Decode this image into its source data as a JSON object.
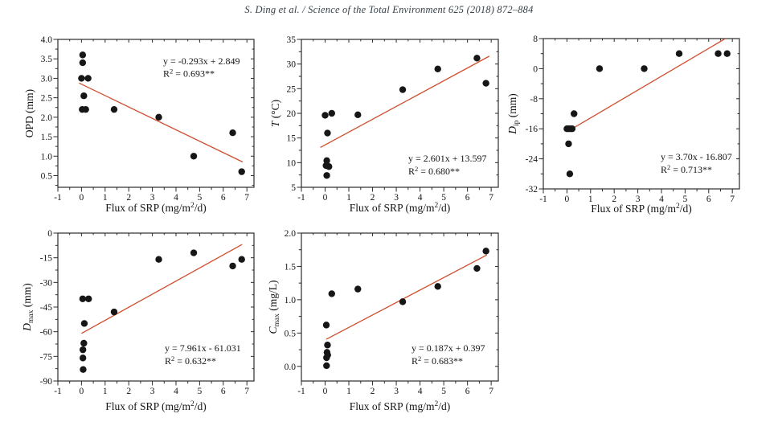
{
  "header": {
    "citation": "S. Ding et al. / Science of the Total Environment 625 (2018) 872–884"
  },
  "colors": {
    "background": "#ffffff",
    "axis": "#2b2b2b",
    "point": "#161616",
    "fit_line": "#cf4e2e",
    "text": "#141414",
    "header_text": "#37424a"
  },
  "xlabel": {
    "prefix": "Flux of SRP (mg/m",
    "sup": "2",
    "suffix": "/d)"
  },
  "chart_data": [
    {
      "id": "opd",
      "type": "scatter",
      "ylabel": {
        "prefix": "OPD",
        "italic": false,
        "sub": "",
        "unit": " (mm)"
      },
      "xlim": [
        -1,
        7.3
      ],
      "ylim": [
        0.2,
        4.0
      ],
      "xticks": [
        -1,
        0,
        1,
        2,
        3,
        4,
        5,
        6,
        7
      ],
      "yticks": [
        0.5,
        1.0,
        1.5,
        2.0,
        2.5,
        3.0,
        3.5,
        4.0
      ],
      "ytick_labels": [
        "0.5",
        "1.0",
        "1.5",
        "2.0",
        "2.5",
        "3.0",
        "3.5",
        "4.0"
      ],
      "x_minor_step": 0.5,
      "y_minor_step": 0.25,
      "grid": false,
      "points": [
        [
          0.05,
          3.6
        ],
        [
          0.05,
          3.4
        ],
        [
          0.0,
          3.0
        ],
        [
          0.28,
          3.0
        ],
        [
          0.1,
          2.55
        ],
        [
          0.03,
          2.2
        ],
        [
          0.18,
          2.2
        ],
        [
          1.38,
          2.2
        ],
        [
          3.27,
          2.0
        ],
        [
          4.75,
          1.0
        ],
        [
          6.4,
          1.6
        ],
        [
          6.78,
          0.6
        ]
      ],
      "fit": {
        "slope": -0.293,
        "intercept": 2.849,
        "x_start": -0.1,
        "x_end": 6.82
      },
      "fit_label": {
        "line1": "y = -0.293x + 2.849",
        "r2_prefix": "R",
        "r2_sup": "2",
        "r2_rest": " = 0.693**"
      }
    },
    {
      "id": "t",
      "type": "scatter",
      "ylabel": {
        "prefix": "T",
        "italic": true,
        "sub": "",
        "unit": " (°C)"
      },
      "xlim": [
        -1,
        7.3
      ],
      "ylim": [
        5,
        35
      ],
      "xticks": [
        -1,
        0,
        1,
        2,
        3,
        4,
        5,
        6,
        7
      ],
      "yticks": [
        5,
        10,
        15,
        20,
        25,
        30,
        35
      ],
      "ytick_labels": [
        "5",
        "10",
        "15",
        "20",
        "25",
        "30",
        "35"
      ],
      "x_minor_step": 0.5,
      "y_minor_step": 2.5,
      "grid": false,
      "points": [
        [
          0.0,
          19.6
        ],
        [
          0.28,
          20.0
        ],
        [
          0.1,
          16.0
        ],
        [
          1.38,
          19.7
        ],
        [
          3.27,
          24.8
        ],
        [
          4.75,
          29.0
        ],
        [
          6.4,
          31.2
        ],
        [
          6.78,
          26.1
        ],
        [
          0.07,
          10.4
        ],
        [
          0.04,
          9.4
        ],
        [
          0.16,
          9.2
        ],
        [
          0.07,
          7.4
        ]
      ],
      "fit": {
        "slope": 2.601,
        "intercept": 13.597,
        "x_start": -0.2,
        "x_end": 6.92
      },
      "fit_label": {
        "line1": "y = 2.601x + 13.597",
        "r2_prefix": "R",
        "r2_sup": "2",
        "r2_rest": " = 0.680**"
      }
    },
    {
      "id": "dip",
      "type": "scatter",
      "ylabel": {
        "prefix": "D",
        "italic": true,
        "sub": "ip",
        "unit": " (mm)"
      },
      "xlim": [
        -1,
        7.3
      ],
      "ylim": [
        -32,
        8
      ],
      "xticks": [
        -1,
        0,
        1,
        2,
        3,
        4,
        5,
        6,
        7
      ],
      "yticks": [
        -32,
        -24,
        -16,
        -8,
        0,
        8
      ],
      "ytick_labels": [
        "-32",
        "-24",
        "-16",
        "-8",
        "0",
        "8"
      ],
      "x_minor_step": 0.5,
      "y_minor_step": 4,
      "grid": false,
      "points": [
        [
          1.38,
          0
        ],
        [
          3.27,
          0
        ],
        [
          4.75,
          4
        ],
        [
          6.4,
          4
        ],
        [
          6.78,
          4
        ],
        [
          0.3,
          -12
        ],
        [
          0.0,
          -16
        ],
        [
          0.07,
          -16
        ],
        [
          0.15,
          -16
        ],
        [
          0.22,
          -16
        ],
        [
          0.07,
          -20
        ],
        [
          0.12,
          -28
        ]
      ],
      "fit": {
        "slope": 3.7,
        "intercept": -16.807,
        "x_start": 0.08,
        "x_end": 6.7
      },
      "fit_label": {
        "line1": "y = 3.70x - 16.807",
        "r2_prefix": "R",
        "r2_sup": "2",
        "r2_rest": " = 0.713**"
      }
    },
    {
      "id": "dmax",
      "type": "scatter",
      "ylabel": {
        "prefix": "D",
        "italic": true,
        "sub": "max",
        "unit": " (mm)"
      },
      "xlim": [
        -1,
        7.3
      ],
      "ylim": [
        -90,
        0
      ],
      "xticks": [
        -1,
        0,
        1,
        2,
        3,
        4,
        5,
        6,
        7
      ],
      "yticks": [
        -90,
        -75,
        -60,
        -45,
        -30,
        -15,
        0
      ],
      "ytick_labels": [
        "-90",
        "-75",
        "-60",
        "-45",
        "-30",
        "-15",
        "0"
      ],
      "x_minor_step": 0.5,
      "y_minor_step": 7.5,
      "grid": false,
      "points": [
        [
          0.05,
          -40
        ],
        [
          0.3,
          -40
        ],
        [
          1.38,
          -48
        ],
        [
          3.27,
          -16
        ],
        [
          4.75,
          -12
        ],
        [
          6.4,
          -20
        ],
        [
          6.78,
          -16
        ],
        [
          0.12,
          -55
        ],
        [
          0.1,
          -67
        ],
        [
          0.06,
          -71
        ],
        [
          0.06,
          -76
        ],
        [
          0.07,
          -83
        ]
      ],
      "fit": {
        "slope": 7.961,
        "intercept": -61.031,
        "x_start": 0.0,
        "x_end": 6.8
      },
      "fit_label": {
        "line1": "y = 7.961x - 61.031",
        "r2_prefix": "R",
        "r2_sup": "2",
        "r2_rest": " = 0.632**"
      }
    },
    {
      "id": "cmax",
      "type": "scatter",
      "ylabel": {
        "prefix": "C",
        "italic": true,
        "sub": "max",
        "unit": " (mg/L)"
      },
      "xlim": [
        -1,
        7.3
      ],
      "ylim": [
        -0.22,
        2.0
      ],
      "xticks": [
        -1,
        0,
        1,
        2,
        3,
        4,
        5,
        6,
        7
      ],
      "yticks": [
        0.0,
        0.5,
        1.0,
        1.5,
        2.0
      ],
      "ytick_labels": [
        "0.0",
        "0.5",
        "1.0",
        "1.5",
        "2.0"
      ],
      "x_minor_step": 0.5,
      "y_minor_step": 0.25,
      "grid": false,
      "points": [
        [
          0.05,
          0.62
        ],
        [
          0.28,
          1.09
        ],
        [
          1.38,
          1.16
        ],
        [
          3.27,
          0.97
        ],
        [
          4.75,
          1.2
        ],
        [
          6.4,
          1.47
        ],
        [
          6.78,
          1.73
        ],
        [
          0.1,
          0.32
        ],
        [
          0.08,
          0.21
        ],
        [
          0.11,
          0.17
        ],
        [
          0.06,
          0.13
        ],
        [
          0.06,
          0.01
        ]
      ],
      "fit": {
        "slope": 0.187,
        "intercept": 0.397,
        "x_start": 0.05,
        "x_end": 6.82
      },
      "fit_label": {
        "line1": "y = 0.187x + 0.397",
        "r2_prefix": "R",
        "r2_sup": "2",
        "r2_rest": " = 0.683**"
      }
    }
  ]
}
